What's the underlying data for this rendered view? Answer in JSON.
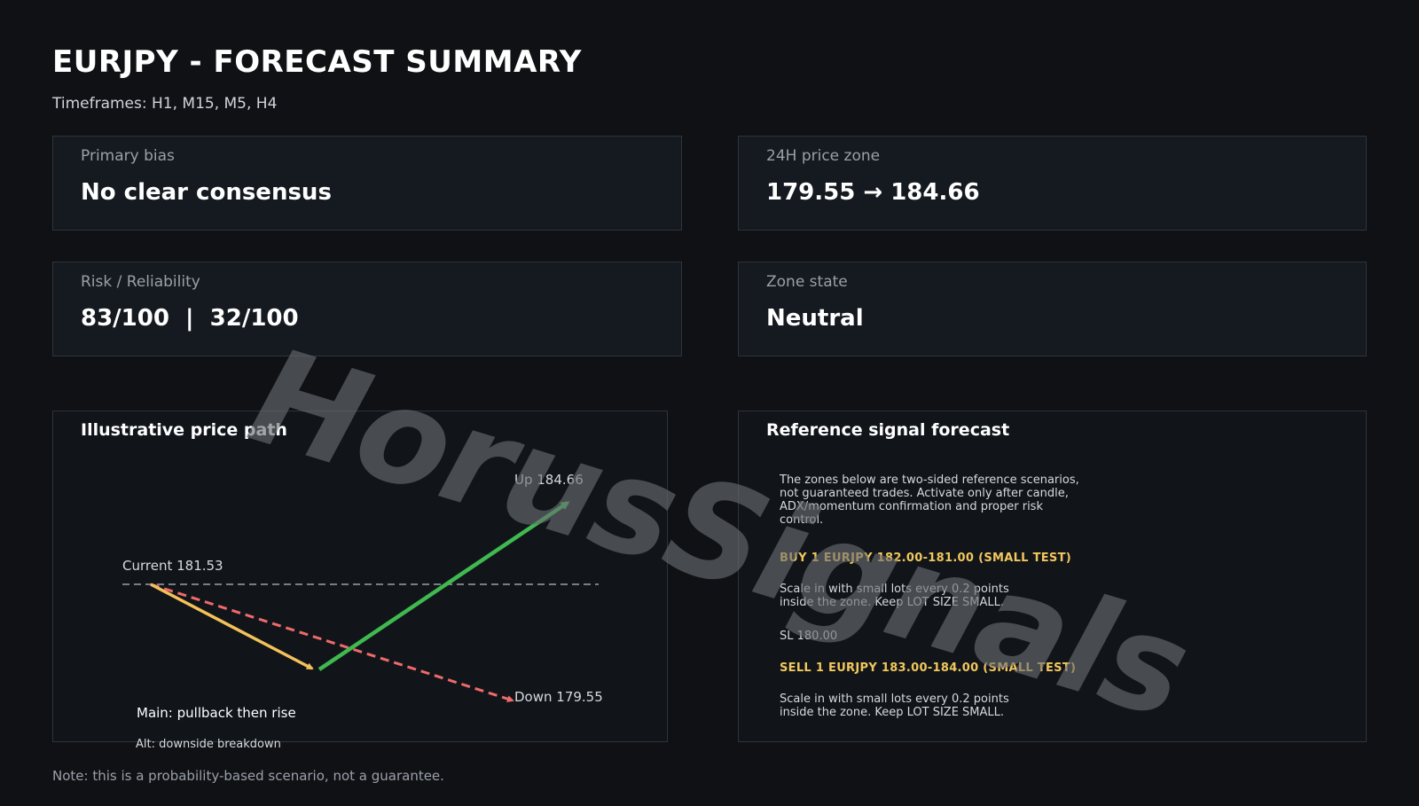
{
  "header": {
    "title": "EURJPY - FORECAST SUMMARY",
    "subtitle": "Timeframes: H1, M15, M5, H4"
  },
  "cards": {
    "primary_bias": {
      "label": "Primary bias",
      "value": "No clear consensus"
    },
    "price_zone": {
      "label": "24H price zone",
      "value": "179.55 → 184.66"
    },
    "risk": {
      "label": "Risk / Reliability",
      "value": "83/100  |  32/100"
    },
    "zone_state": {
      "label": "Zone state",
      "value": "Neutral"
    }
  },
  "price_path": {
    "title": "Illustrative price path",
    "current_label": "Current 181.53",
    "up_label": "Up 184.66",
    "down_label": "Down 179.55",
    "main_scenario": "Main: pullback then rise",
    "alt_scenario": "Alt: downside breakdown",
    "colors": {
      "main_pullback": "#f4c15a",
      "main_rise": "#3fb950",
      "alt_down": "#f06a6a",
      "current_line": "#9aa0a8"
    }
  },
  "signal_forecast": {
    "title": "Reference signal forecast",
    "intro": "The zones below are two-sided reference scenarios, not guaranteed trades. Activate only after candle, ADX/momentum confirmation and proper risk control.",
    "buy_heading": "BUY 1 EURJPY 182.00-181.00 (SMALL TEST)",
    "buy_text": "Scale in with small lots every 0.2 points inside the zone. Keep LOT SIZE SMALL.",
    "buy_sl": "SL 180.00",
    "sell_heading": "SELL 1 EURJPY 183.00-184.00 (SMALL TEST)",
    "sell_text": "Scale in with small lots every 0.2 points inside the zone. Keep LOT SIZE SMALL."
  },
  "footnote": "Note: this is a probability-based scenario, not a guarantee.",
  "watermark": "HorusSignals"
}
